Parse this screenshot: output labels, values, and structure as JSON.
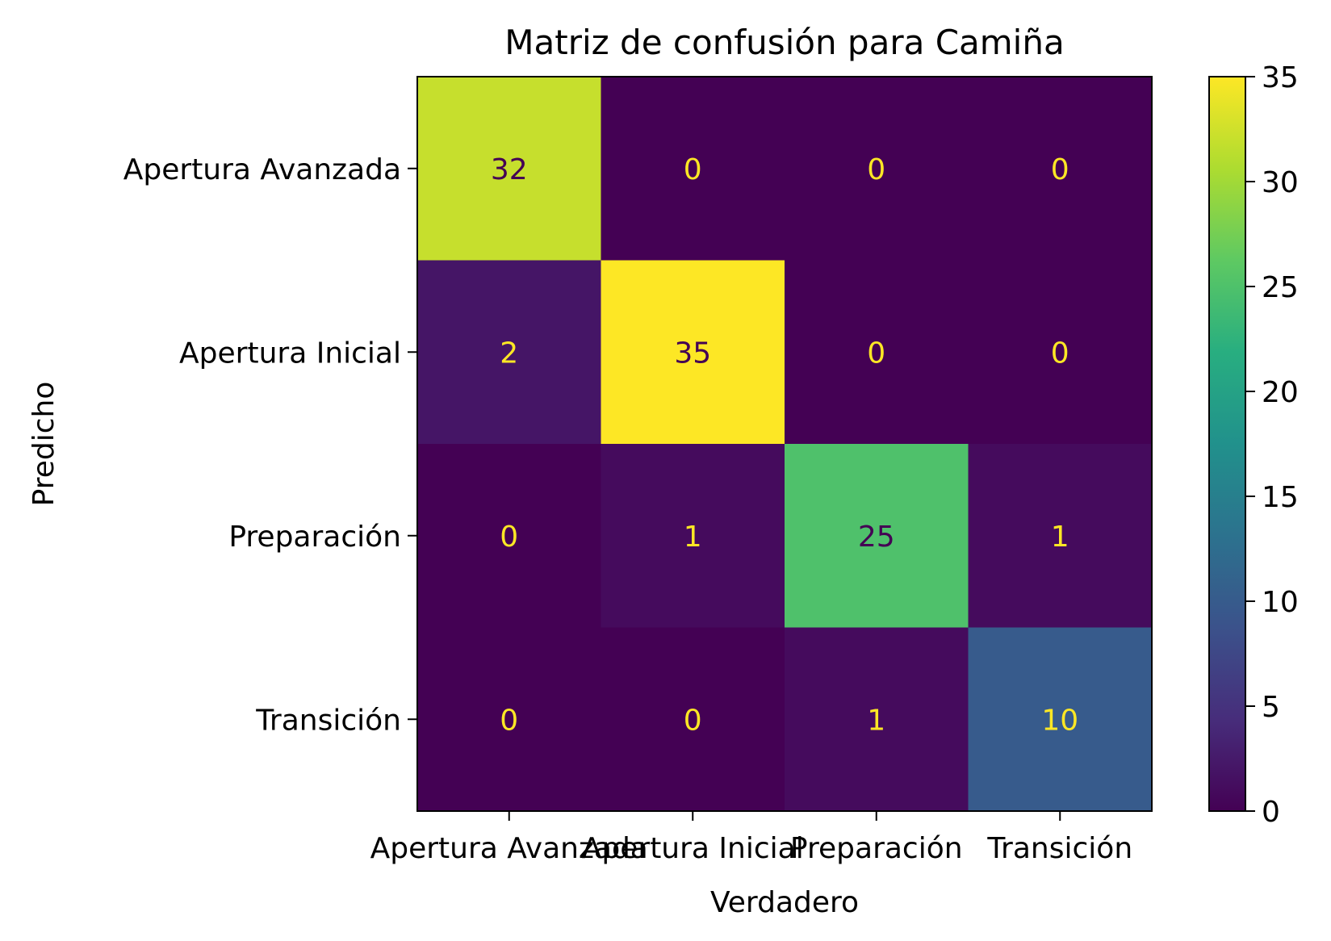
{
  "chart_data": {
    "type": "heatmap",
    "title": "Matriz de confusión para Camiña",
    "xlabel": "Verdadero",
    "ylabel": "Predicho",
    "x_categories": [
      "Apertura Avanzada",
      "Apertura Inicial",
      "Preparación",
      "Transición"
    ],
    "y_categories": [
      "Apertura Avanzada",
      "Apertura Inicial",
      "Preparación",
      "Transición"
    ],
    "values": [
      [
        32,
        0,
        0,
        0
      ],
      [
        2,
        35,
        0,
        0
      ],
      [
        0,
        1,
        25,
        1
      ],
      [
        0,
        0,
        1,
        10
      ]
    ],
    "colorbar": {
      "range": [
        0,
        35
      ],
      "ticks": [
        0,
        5,
        10,
        15,
        20,
        25,
        30,
        35
      ],
      "colormap": "viridis"
    },
    "grid": false,
    "text_colors": {
      "on_dark": "#fde725",
      "on_light": "#440154"
    }
  }
}
